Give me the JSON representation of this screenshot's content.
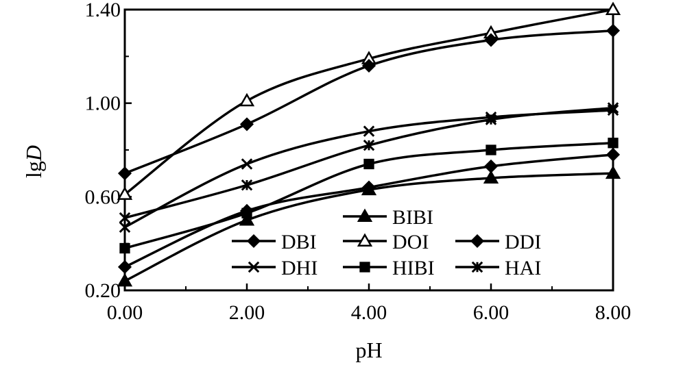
{
  "chart_data": {
    "type": "line",
    "xlabel": "pH",
    "ylabel_prefix": "lg",
    "ylabel_var": "D",
    "xlim": [
      0,
      8
    ],
    "ylim": [
      0.2,
      1.4
    ],
    "x_ticks": [
      0,
      2,
      4,
      6,
      8
    ],
    "x_tick_labels": [
      "0.00",
      "2.00",
      "4.00",
      "6.00",
      "8.00"
    ],
    "y_ticks": [
      0.2,
      0.6,
      1.0,
      1.4
    ],
    "y_tick_labels": [
      "0.20",
      "0.60",
      "1.00",
      "1.40"
    ],
    "grid": false,
    "legend_position": "bottom-center (inside plot)",
    "x": [
      0,
      2,
      4,
      6,
      8
    ],
    "series": [
      {
        "name": "BIBI",
        "marker": "triangle-filled",
        "values": [
          0.24,
          0.5,
          0.63,
          0.68,
          0.7
        ]
      },
      {
        "name": "DBI",
        "marker": "diamond-filled",
        "values": [
          0.3,
          0.54,
          0.64,
          0.73,
          0.78
        ]
      },
      {
        "name": "DOI",
        "marker": "triangle-open",
        "values": [
          0.61,
          1.01,
          1.19,
          1.3,
          1.4
        ]
      },
      {
        "name": "DDI",
        "marker": "diamond-filled",
        "values": [
          0.7,
          0.91,
          1.16,
          1.27,
          1.31
        ]
      },
      {
        "name": "DHI",
        "marker": "x",
        "values": [
          0.47,
          0.74,
          0.88,
          0.94,
          0.97
        ]
      },
      {
        "name": "HIBI",
        "marker": "square-filled",
        "values": [
          0.38,
          0.53,
          0.74,
          0.8,
          0.83
        ]
      },
      {
        "name": "HAI",
        "marker": "asterisk",
        "values": [
          0.51,
          0.65,
          0.82,
          0.93,
          0.98
        ]
      }
    ]
  }
}
